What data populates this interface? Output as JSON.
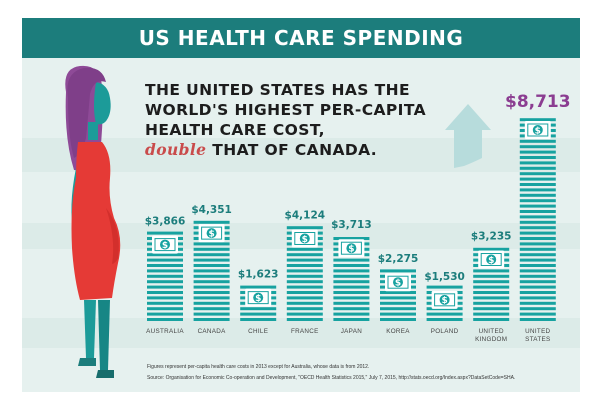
{
  "header": {
    "title": "US HEALTH CARE SPENDING"
  },
  "headline": {
    "line1": "THE UNITED STATES HAS THE",
    "line2": "WORLD'S HIGHEST PER-CAPITA",
    "line3": "HEALTH CARE COST,",
    "emphasis": "double",
    "line4_rest": " THAT OF CANADA."
  },
  "colors": {
    "header": "#1c7d7c",
    "bar": "#17a2a0",
    "us_value": "#8b3d91",
    "dress": "#e53a36",
    "hair": "#8e4a97",
    "arrow": "#b7dcdc",
    "emphasis": "#c94b4b"
  },
  "icons": [
    "dollar-bill-icon",
    "up-arrow-icon",
    "woman-illustration"
  ],
  "chart_data": {
    "type": "bar",
    "categories": [
      "AUSTRALIA",
      "CANADA",
      "CHILE",
      "FRANCE",
      "JAPAN",
      "KOREA",
      "POLAND",
      "UNITED KINGDOM",
      "UNITED STATES"
    ],
    "category_lines": [
      [
        "AUSTRALIA"
      ],
      [
        "CANADA"
      ],
      [
        "CHILE"
      ],
      [
        "FRANCE"
      ],
      [
        "JAPAN"
      ],
      [
        "KOREA"
      ],
      [
        "POLAND"
      ],
      [
        "UNITED",
        "KINGDOM"
      ],
      [
        "UNITED",
        "STATES"
      ]
    ],
    "values": [
      3866,
      4351,
      1623,
      4124,
      3713,
      2275,
      1530,
      3235,
      8713
    ],
    "value_labels": [
      "$3,866",
      "$4,351",
      "$1,623",
      "$4,124",
      "$3,713",
      "$2,275",
      "$1,530",
      "$3,235",
      "$8,713"
    ],
    "icon_symbol": "$",
    "ylim": [
      0,
      8713
    ],
    "title": "",
    "xlabel": "",
    "ylabel": ""
  },
  "footnote": "Figures represent per-capita health care costs in 2013 except for Australia, whose data is from 2012.",
  "source": "Source: Organisation for Economic Co-operation and Development, \"OECD Health Statistics 2015,\" July 7, 2015, http://stats.oecd.org/Index.aspx?DataSetCode=SHA."
}
